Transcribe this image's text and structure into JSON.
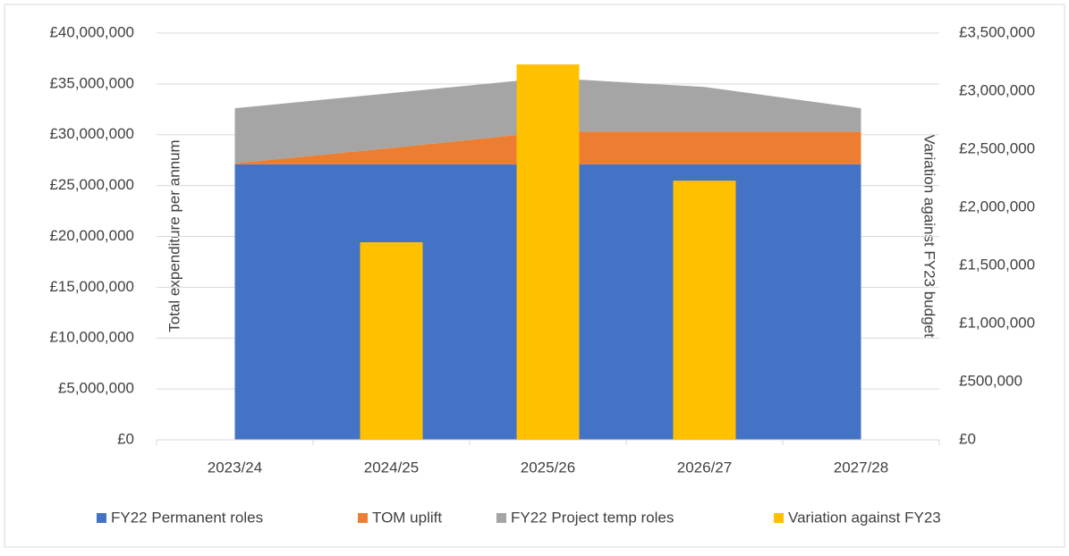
{
  "chart_data": {
    "type": "area_bar",
    "categories": [
      "2023/24",
      "2024/25",
      "2025/26",
      "2026/27",
      "2027/28"
    ],
    "series": [
      {
        "name": "FY22 Permanent roles",
        "color": "#4472c4",
        "values": [
          27100000,
          27100000,
          27100000,
          27100000,
          27100000
        ]
      },
      {
        "name": "TOM uplift",
        "color": "#ed7d31",
        "values": [
          100000,
          1600000,
          3200000,
          3200000,
          3200000
        ]
      },
      {
        "name": "FY22 Project temp roles",
        "color": "#a5a5a5",
        "values": [
          5400000,
          5400000,
          5300000,
          4400000,
          2300000
        ]
      },
      {
        "name": "Variation against FY23",
        "color": "#ffc000",
        "axis": "y2",
        "values": [
          0,
          1700000,
          3230000,
          2230000,
          0
        ]
      }
    ],
    "ylabel": "Total expenditure per annum",
    "y2label": "Variation against FY23 budget",
    "ylim": [
      0,
      40000000
    ],
    "yticks": [
      {
        "value": 0,
        "label": "£0"
      },
      {
        "value": 5000000,
        "label": "£5,000,000"
      },
      {
        "value": 10000000,
        "label": "£10,000,000"
      },
      {
        "value": 15000000,
        "label": "£15,000,000"
      },
      {
        "value": 20000000,
        "label": "£20,000,000"
      },
      {
        "value": 25000000,
        "label": "£25,000,000"
      },
      {
        "value": 30000000,
        "label": "£30,000,000"
      },
      {
        "value": 35000000,
        "label": "£35,000,000"
      },
      {
        "value": 40000000,
        "label": "£40,000,000"
      }
    ],
    "y2lim": [
      0,
      3500000
    ],
    "y2ticks": [
      {
        "value": 0,
        "label": "£0"
      },
      {
        "value": 500000,
        "label": "£500,000"
      },
      {
        "value": 1000000,
        "label": "£1,000,000"
      },
      {
        "value": 1500000,
        "label": "£1,500,000"
      },
      {
        "value": 2000000,
        "label": "£2,000,000"
      },
      {
        "value": 2500000,
        "label": "£2,500,000"
      },
      {
        "value": 3000000,
        "label": "£3,000,000"
      },
      {
        "value": 3500000,
        "label": "£3,500,000"
      }
    ],
    "grid": true,
    "legend": "bottom"
  }
}
